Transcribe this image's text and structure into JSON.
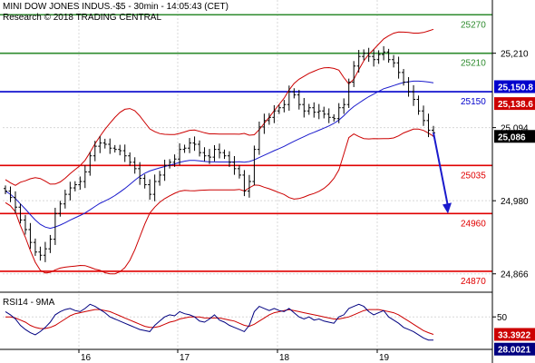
{
  "header": {
    "title": "MINI DOW JONES INDUS.-$5 - 30min - 14:05:43 (CET)",
    "research": "Research © 2018 TRADING CENTRAL"
  },
  "colors": {
    "price_bars": "#000000",
    "bollinger": "#cc0000",
    "moving_average": "#1a1acc",
    "resistance": "#2e8b2e",
    "support": "#e00000",
    "pivot": "#0000cc",
    "forecast_arrow": "#1a1acc",
    "rsi": "#000080",
    "rsi_ma": "#cc0000"
  },
  "chart_data": [
    {
      "type": "line",
      "title": "MINI DOW JONES INDUS.-$5 - 30min - 14:05:43 (CET)",
      "subtype": "ohlc-bars",
      "x_labels": [
        "16",
        "17",
        "18",
        "19"
      ],
      "y_ticks": [
        "25,210",
        "25,094",
        "24,980",
        "24,866"
      ],
      "y_tick_values": [
        25210,
        25094,
        24980,
        24866
      ],
      "ylim": [
        24843,
        25293
      ],
      "grid": true,
      "levels": [
        {
          "label": "25270",
          "value": 25270,
          "role": "resistance"
        },
        {
          "label": "25210",
          "value": 25210,
          "role": "resistance"
        },
        {
          "label": "25150",
          "value": 25150,
          "role": "pivot"
        },
        {
          "label": "25035",
          "value": 25035,
          "role": "support"
        },
        {
          "label": "24960",
          "value": 24960,
          "role": "support"
        },
        {
          "label": "24870",
          "value": 24870,
          "role": "support"
        }
      ],
      "price_badges": [
        {
          "label": "25,150.8",
          "value": 25150.8,
          "color": "#0000cc"
        },
        {
          "label": "25,138.6",
          "value": 25138.6,
          "color": "#cc0000"
        },
        {
          "label": "25,086",
          "value": 25086,
          "color": "#000000"
        }
      ],
      "forecast": {
        "from": 25086,
        "to": 24960
      },
      "series": [
        {
          "values": [
            24995,
            24985,
            24970,
            24950,
            24935,
            24915,
            24900,
            24895,
            24905,
            24920,
            24960,
            24975,
            24990,
            25000,
            25005,
            25010,
            25025,
            25050,
            25065,
            25070,
            25068,
            25062,
            25060,
            25058,
            25050,
            25040,
            25030,
            25015,
            25005,
            24990,
            25010,
            25020,
            25035,
            25040,
            25045,
            25060,
            25062,
            25070,
            25068,
            25055,
            25050,
            25048,
            25060,
            25055,
            25050,
            25040,
            25030,
            25020,
            24995,
            25010,
            25060,
            25095,
            25105,
            25110,
            25120,
            25125,
            25130,
            25150,
            25145,
            25130,
            25120,
            25125,
            25118,
            25120,
            25115,
            25110,
            25108,
            25125,
            25130,
            25165,
            25190,
            25205,
            25210,
            25205,
            25200,
            25208,
            25212,
            25200,
            25195,
            25180,
            25165,
            25150,
            25138,
            25120,
            25105,
            25090,
            25086
          ]
        }
      ]
    },
    {
      "type": "line",
      "title": "RSI14 - 9MA",
      "x_labels": [
        "16",
        "17",
        "18",
        "19"
      ],
      "y_ticks": [
        "50"
      ],
      "y_tick_values": [
        50
      ],
      "ylim": [
        20,
        70
      ],
      "grid": true,
      "rsi_badges": [
        {
          "label": "33.3922",
          "value": 33.3922,
          "color": "#cc0000"
        },
        {
          "label": "28.0021",
          "value": 28.0021,
          "color": "#000080"
        }
      ],
      "series": [
        {
          "values": [
            55,
            52,
            48,
            42,
            38,
            35,
            33,
            36,
            40,
            45,
            52,
            55,
            57,
            58,
            56,
            55,
            58,
            62,
            60,
            57,
            54,
            50,
            48,
            46,
            44,
            42,
            40,
            38,
            37,
            36,
            42,
            46,
            50,
            52,
            51,
            55,
            53,
            52,
            50,
            46,
            45,
            48,
            52,
            47,
            45,
            42,
            40,
            38,
            36,
            42,
            55,
            60,
            58,
            56,
            58,
            56,
            55,
            58,
            54,
            50,
            48,
            50,
            47,
            48,
            46,
            45,
            44,
            50,
            52,
            58,
            60,
            62,
            60,
            55,
            52,
            54,
            56,
            50,
            47,
            44,
            40,
            38,
            36,
            33,
            30,
            28,
            28
          ]
        },
        {
          "values": [
            50,
            50,
            49,
            47,
            45,
            42,
            40,
            39,
            39,
            40,
            42,
            45,
            48,
            51,
            53,
            54,
            55,
            56,
            57,
            57,
            56,
            55,
            53,
            51,
            49,
            47,
            45,
            43,
            41,
            40,
            40,
            41,
            43,
            45,
            46,
            48,
            49,
            50,
            50,
            50,
            49,
            49,
            49,
            49,
            48,
            47,
            46,
            44,
            42,
            41,
            43,
            46,
            49,
            52,
            54,
            55,
            56,
            57,
            56,
            55,
            54,
            53,
            52,
            51,
            50,
            49,
            48,
            48,
            49,
            50,
            52,
            54,
            56,
            57,
            57,
            57,
            56,
            55,
            54,
            52,
            49,
            46,
            43,
            40,
            37,
            35,
            33.4
          ]
        }
      ]
    }
  ]
}
